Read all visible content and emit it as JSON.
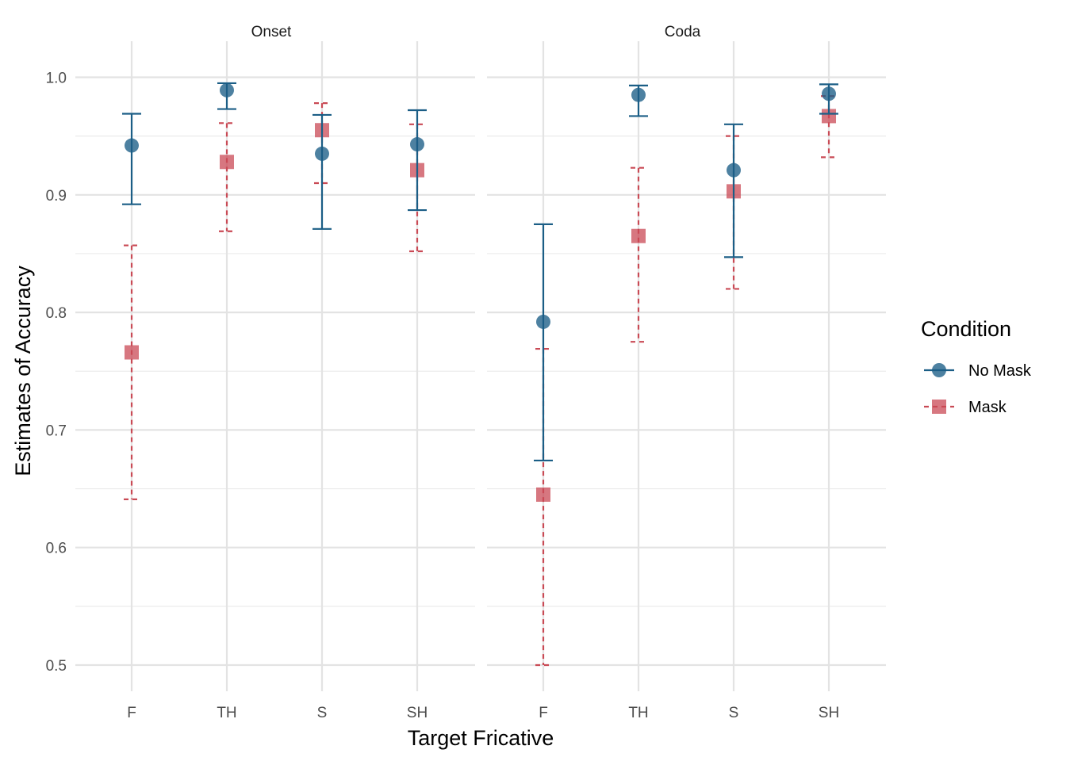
{
  "chart_data": {
    "type": "scatter",
    "panels": [
      "Onset",
      "Coda"
    ],
    "categories": [
      "F",
      "TH",
      "S",
      "SH"
    ],
    "xlabel": "Target Fricative",
    "ylabel": "Estimates of Accuracy",
    "ylim": [
      0.475,
      1.03
    ],
    "yticks": [
      "0.5",
      "0.6",
      "0.7",
      "0.8",
      "0.9",
      "1.0"
    ],
    "legend": {
      "title": "Condition",
      "position": "right",
      "entries": [
        "No Mask",
        "Mask"
      ]
    },
    "colors": {
      "no_mask": "#1b5e86",
      "mask": "#c94a55"
    },
    "series": [
      {
        "name": "No Mask",
        "marker": "circle",
        "line": "solid",
        "values": {
          "Onset": [
            {
              "x": "F",
              "y": 0.942,
              "lo": 0.892,
              "hi": 0.969
            },
            {
              "x": "TH",
              "y": 0.989,
              "lo": 0.973,
              "hi": 0.995
            },
            {
              "x": "S",
              "y": 0.935,
              "lo": 0.871,
              "hi": 0.968
            },
            {
              "x": "SH",
              "y": 0.943,
              "lo": 0.887,
              "hi": 0.972
            }
          ],
          "Coda": [
            {
              "x": "F",
              "y": 0.792,
              "lo": 0.674,
              "hi": 0.875
            },
            {
              "x": "TH",
              "y": 0.985,
              "lo": 0.967,
              "hi": 0.993
            },
            {
              "x": "S",
              "y": 0.921,
              "lo": 0.847,
              "hi": 0.96
            },
            {
              "x": "SH",
              "y": 0.986,
              "lo": 0.969,
              "hi": 0.994
            }
          ]
        }
      },
      {
        "name": "Mask",
        "marker": "square",
        "line": "dashed",
        "values": {
          "Onset": [
            {
              "x": "F",
              "y": 0.766,
              "lo": 0.641,
              "hi": 0.857
            },
            {
              "x": "TH",
              "y": 0.928,
              "lo": 0.869,
              "hi": 0.961
            },
            {
              "x": "S",
              "y": 0.955,
              "lo": 0.91,
              "hi": 0.978
            },
            {
              "x": "SH",
              "y": 0.921,
              "lo": 0.852,
              "hi": 0.96
            }
          ],
          "Coda": [
            {
              "x": "F",
              "y": 0.645,
              "lo": 0.5,
              "hi": 0.769
            },
            {
              "x": "TH",
              "y": 0.865,
              "lo": 0.775,
              "hi": 0.923
            },
            {
              "x": "S",
              "y": 0.903,
              "lo": 0.82,
              "hi": 0.95
            },
            {
              "x": "SH",
              "y": 0.967,
              "lo": 0.932,
              "hi": 0.984
            }
          ]
        }
      }
    ]
  }
}
